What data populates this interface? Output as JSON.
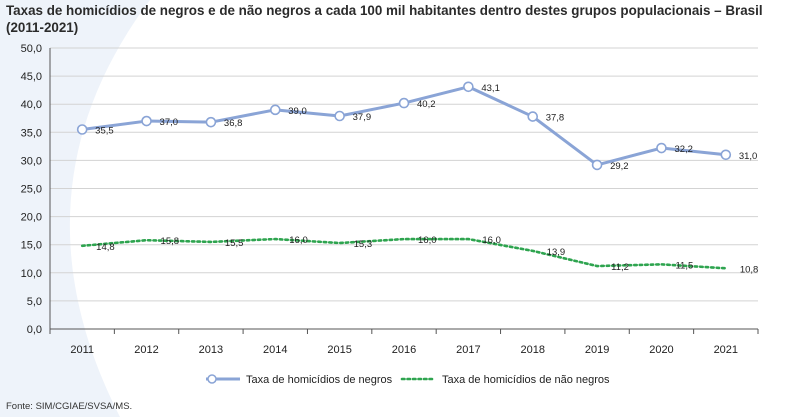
{
  "title": "Taxas de homicídios de negros e de não negros a cada 100 mil habitantes dentro destes grupos populacionais – Brasil (2011-2021)",
  "source": "Fonte: SIM/CGIAE/SVSA/MS.",
  "colors": {
    "negros": "#8aa4d6",
    "nao_negros": "#2ea44f",
    "grid": "#d3d3d3",
    "axis": "#555555",
    "swoosh": "#eef3fa"
  },
  "chart_data": {
    "type": "line",
    "title": "Taxas de homicídios de negros e de não negros a cada 100 mil habitantes dentro destes grupos populacionais – Brasil (2011-2021)",
    "xlabel": "",
    "ylabel": "",
    "ylim": [
      0,
      50
    ],
    "ytick_step": 5,
    "yticks": [
      "0,0",
      "5,0",
      "10,0",
      "15,0",
      "20,0",
      "25,0",
      "30,0",
      "35,0",
      "40,0",
      "45,0",
      "50,0"
    ],
    "grid": true,
    "legend_position": "bottom",
    "categories": [
      "2011",
      "2012",
      "2013",
      "2014",
      "2015",
      "2016",
      "2017",
      "2018",
      "2019",
      "2020",
      "2021"
    ],
    "series": [
      {
        "name": "Taxa de homicídios de negros",
        "values": [
          35.5,
          37.0,
          36.8,
          39.0,
          37.9,
          40.2,
          43.1,
          37.8,
          29.2,
          32.2,
          31.0
        ],
        "labels": [
          "35,5",
          "37,0",
          "36,8",
          "39,0",
          "37,9",
          "40,2",
          "43,1",
          "37,8",
          "29,2",
          "32,2",
          "31,0"
        ],
        "style": "solid-markers"
      },
      {
        "name": "Taxa de homicídios de não negros",
        "values": [
          14.8,
          15.8,
          15.5,
          16.0,
          15.3,
          16.0,
          16.0,
          13.9,
          11.2,
          11.5,
          10.8
        ],
        "labels": [
          "14,8",
          "15,8",
          "15,5",
          "16,0",
          "15,3",
          "16,0",
          "16,0",
          "13,9",
          "11,2",
          "11,5",
          "10,8"
        ],
        "style": "dotted"
      }
    ]
  }
}
